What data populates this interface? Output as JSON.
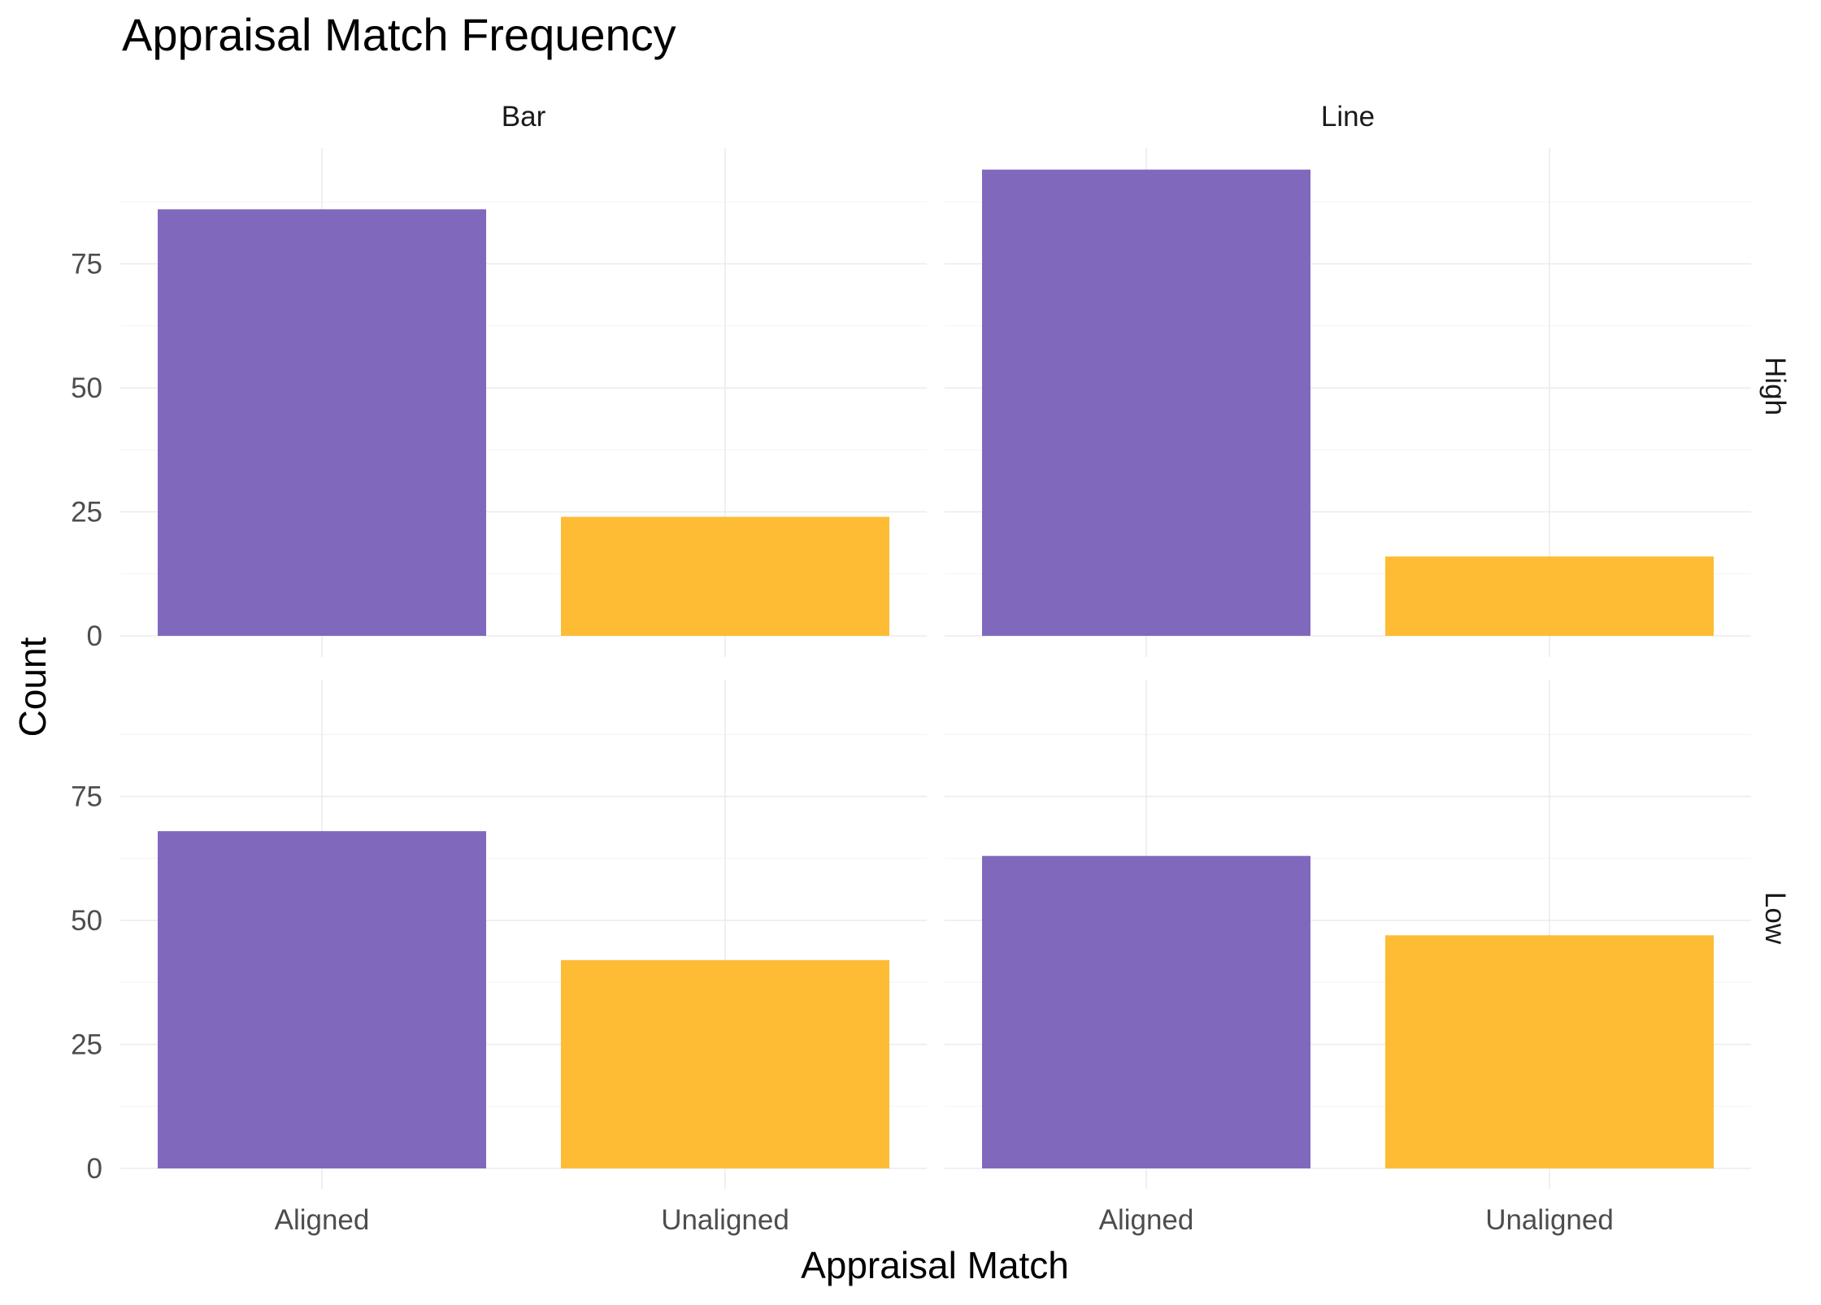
{
  "chart_data": {
    "type": "bar",
    "title": "Appraisal Match Frequency",
    "xlabel": "Appraisal Match",
    "ylabel": "Count",
    "categories": [
      "Aligned",
      "Unaligned"
    ],
    "colors": {
      "Aligned": "#8068BD",
      "Unaligned": "#FEBC35"
    },
    "ylim": [
      0,
      94
    ],
    "yticks": [
      0,
      25,
      50,
      75
    ],
    "grid": true,
    "legend": "none",
    "facet_columns": [
      "Bar",
      "Line"
    ],
    "facet_rows": [
      "High",
      "Low"
    ],
    "panels": [
      {
        "column": "Bar",
        "row": "High",
        "values": [
          86,
          24
        ]
      },
      {
        "column": "Line",
        "row": "High",
        "values": [
          94,
          16
        ]
      },
      {
        "column": "Bar",
        "row": "Low",
        "values": [
          68,
          42
        ]
      },
      {
        "column": "Line",
        "row": "Low",
        "values": [
          63,
          47
        ]
      }
    ]
  }
}
